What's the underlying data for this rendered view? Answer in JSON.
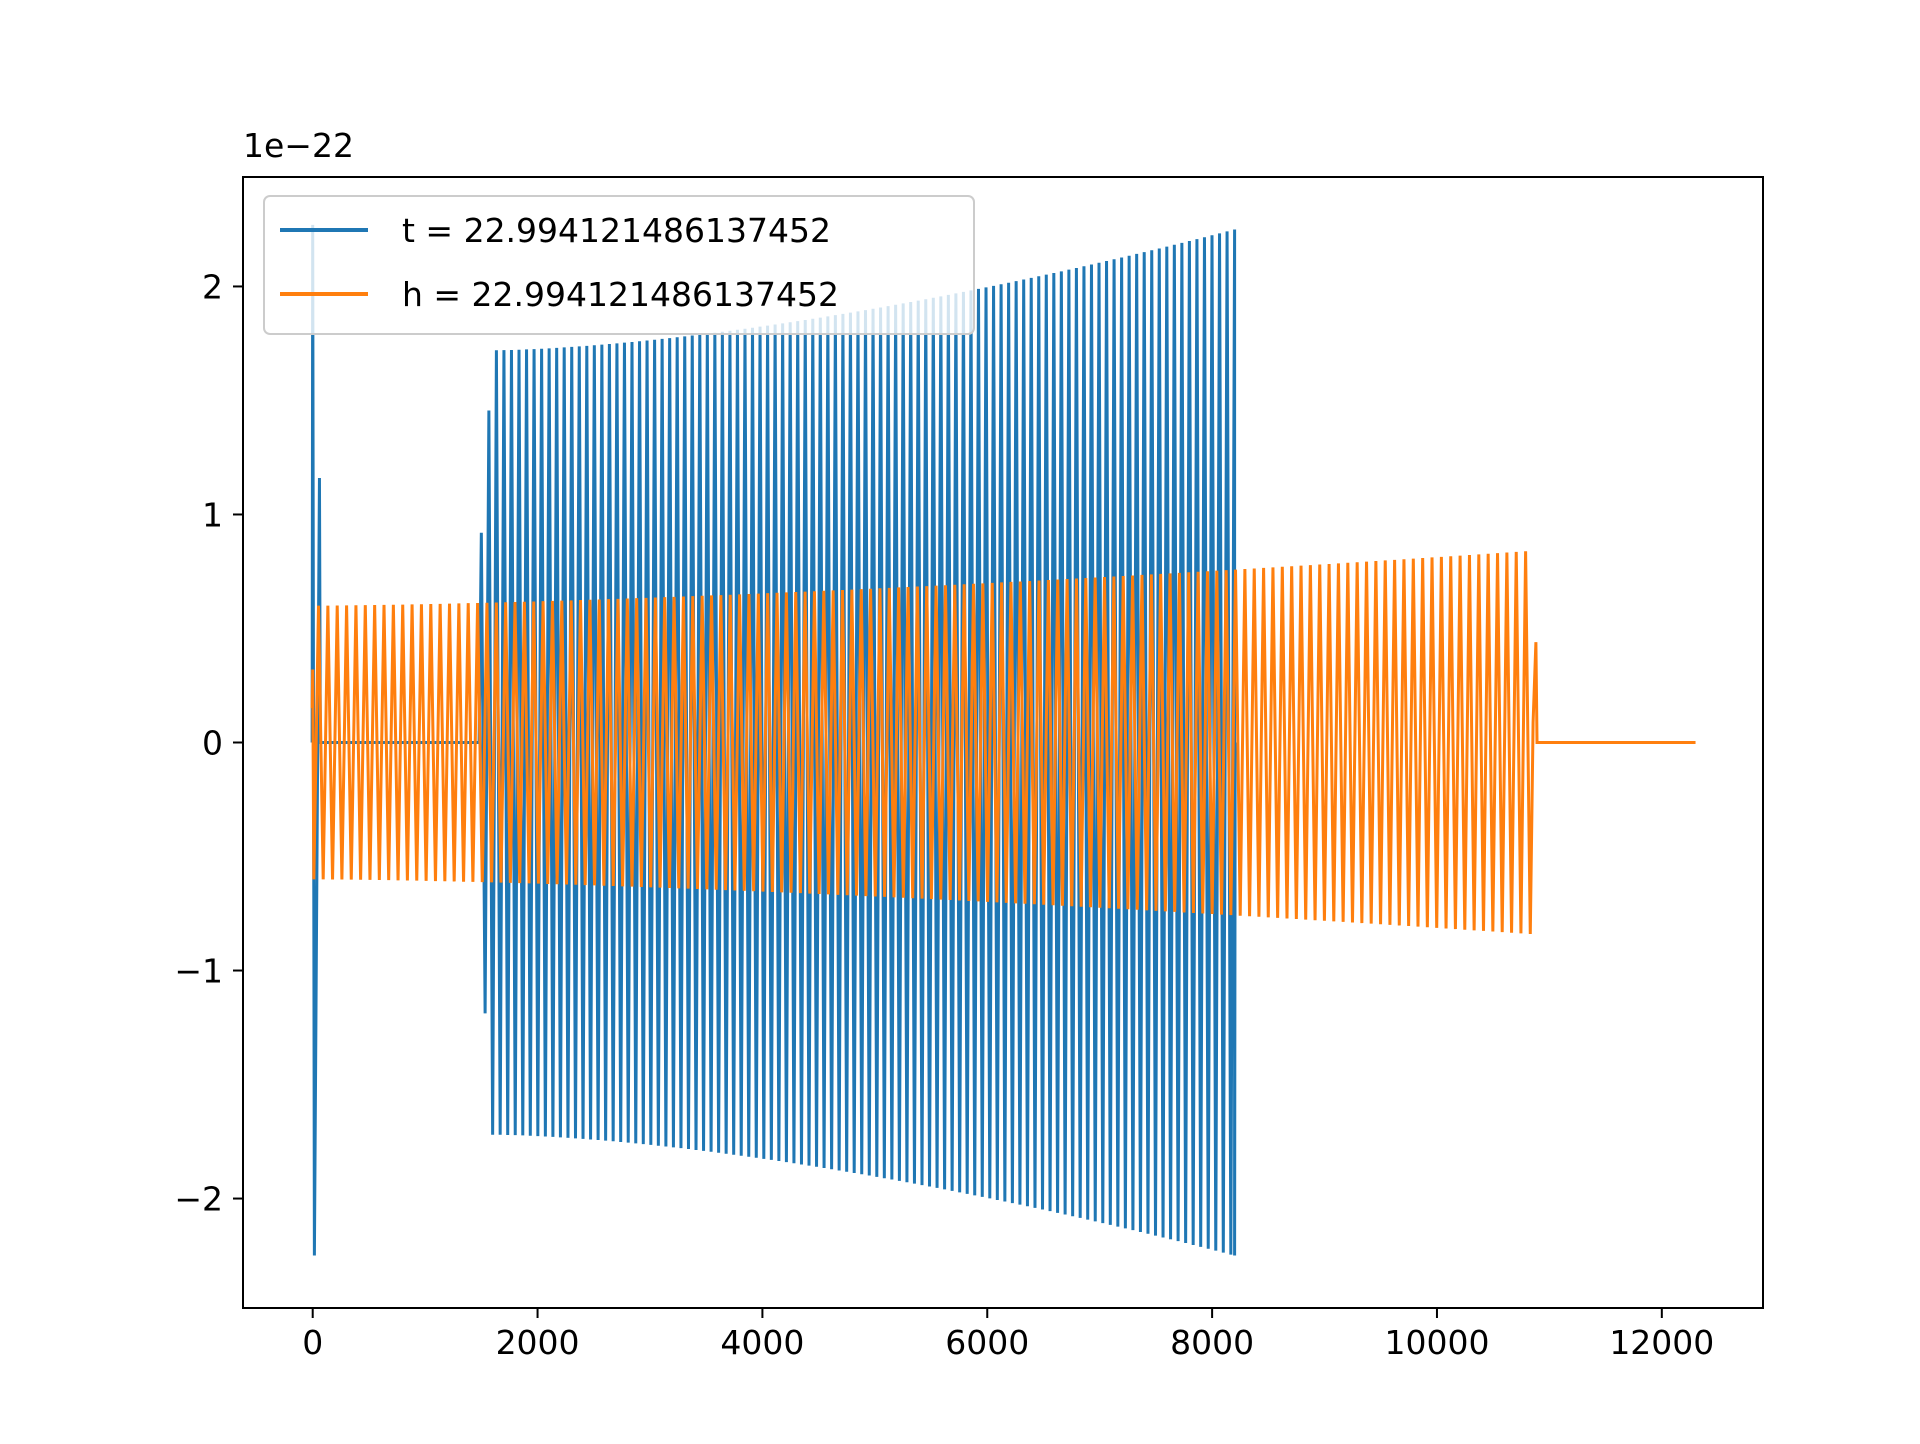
{
  "chart_data": {
    "type": "line",
    "title": "",
    "xlabel": "",
    "ylabel": "",
    "y_offset_label": "1e−22",
    "xlim": [
      -620,
      12900
    ],
    "ylim": [
      -2.48,
      2.48
    ],
    "x_ticks": [
      0,
      2000,
      4000,
      6000,
      8000,
      10000,
      12000
    ],
    "x_tick_labels": [
      "0",
      "2000",
      "4000",
      "6000",
      "8000",
      "10000",
      "12000"
    ],
    "y_ticks": [
      -2,
      -1,
      0,
      1,
      2
    ],
    "y_tick_labels": [
      "−2",
      "−1",
      "0",
      "1",
      "2"
    ],
    "grid": false,
    "legend_position": "top-left",
    "series": [
      {
        "name": "t = 22.994121486137452",
        "color": "#1f77b4",
        "description_values": {
          "spike_x": [
            0,
            15,
            60
          ],
          "spike_y": [
            2.27,
            -2.25,
            1.16
          ],
          "burst_start_x": 1500,
          "burst_start_amp": 0.92,
          "amp_at_1600": 1.72,
          "burst_end_x": 8200,
          "end_amp": 2.25,
          "cycles": 100
        }
      },
      {
        "name": "h = 22.994121486137452",
        "color": "#ff7f0e",
        "description_values": {
          "start_x": 0,
          "end_osc_x": 10830,
          "flat_end_x": 12300,
          "start_amp": 0.6,
          "end_amp": 0.84,
          "last_peak_x": 10880,
          "last_peak_amp": 0.44,
          "cycles": 130
        }
      }
    ]
  }
}
